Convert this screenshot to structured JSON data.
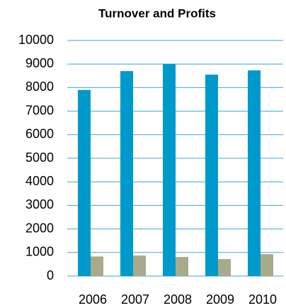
{
  "chart_data": {
    "type": "bar",
    "title": "Turnover and Profits",
    "categories": [
      "2006",
      "2007",
      "2008",
      "2009",
      "2010"
    ],
    "series": [
      {
        "color": "#0099cc",
        "values": [
          7900,
          8700,
          9000,
          8550,
          8730
        ]
      },
      {
        "color": "#a9a98b",
        "values": [
          830,
          870,
          810,
          720,
          930
        ]
      }
    ],
    "ylim": [
      0,
      10000
    ],
    "yticks": [
      0,
      1000,
      2000,
      3000,
      4000,
      5000,
      6000,
      7000,
      8000,
      9000,
      10000
    ],
    "grid": true,
    "grid_color": "#3aa9cf"
  }
}
